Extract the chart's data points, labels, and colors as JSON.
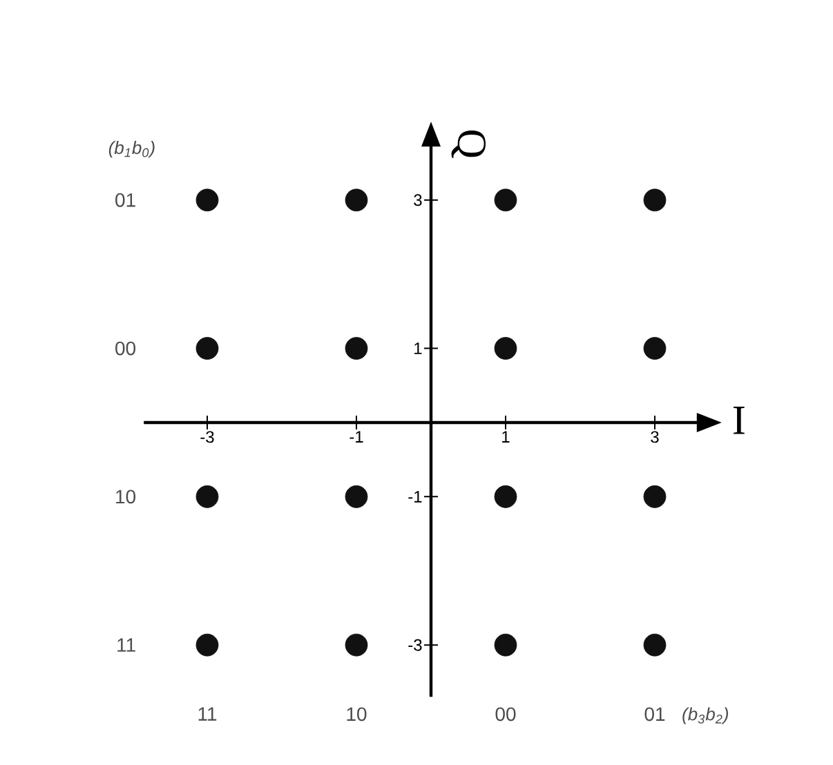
{
  "chart_data": {
    "type": "scatter",
    "xlabel": "I",
    "ylabel": "Q",
    "x": [
      -3,
      -1,
      1,
      3,
      -3,
      -1,
      1,
      3,
      -3,
      -1,
      1,
      3,
      -3,
      -1,
      1,
      3
    ],
    "series": [
      {
        "color": "#111111",
        "values": [
          3,
          3,
          3,
          3,
          1,
          1,
          1,
          1,
          -1,
          -1,
          -1,
          -1,
          -3,
          -3,
          -3,
          -3
        ]
      }
    ],
    "marker": "circle",
    "xlim": [
      -3.85,
      3.6
    ],
    "ylim": [
      -3.7,
      3.76
    ],
    "xticks": [
      -3,
      -1,
      1,
      3
    ],
    "yticks": [
      -3,
      -1,
      1,
      3
    ],
    "annotations": [
      "(b$_{1}$b$_{0}$)",
      "01",
      "00",
      "10",
      "11",
      "11",
      "10",
      "00",
      "01",
      "(b$_{3}$b$_{2}$)"
    ]
  }
}
